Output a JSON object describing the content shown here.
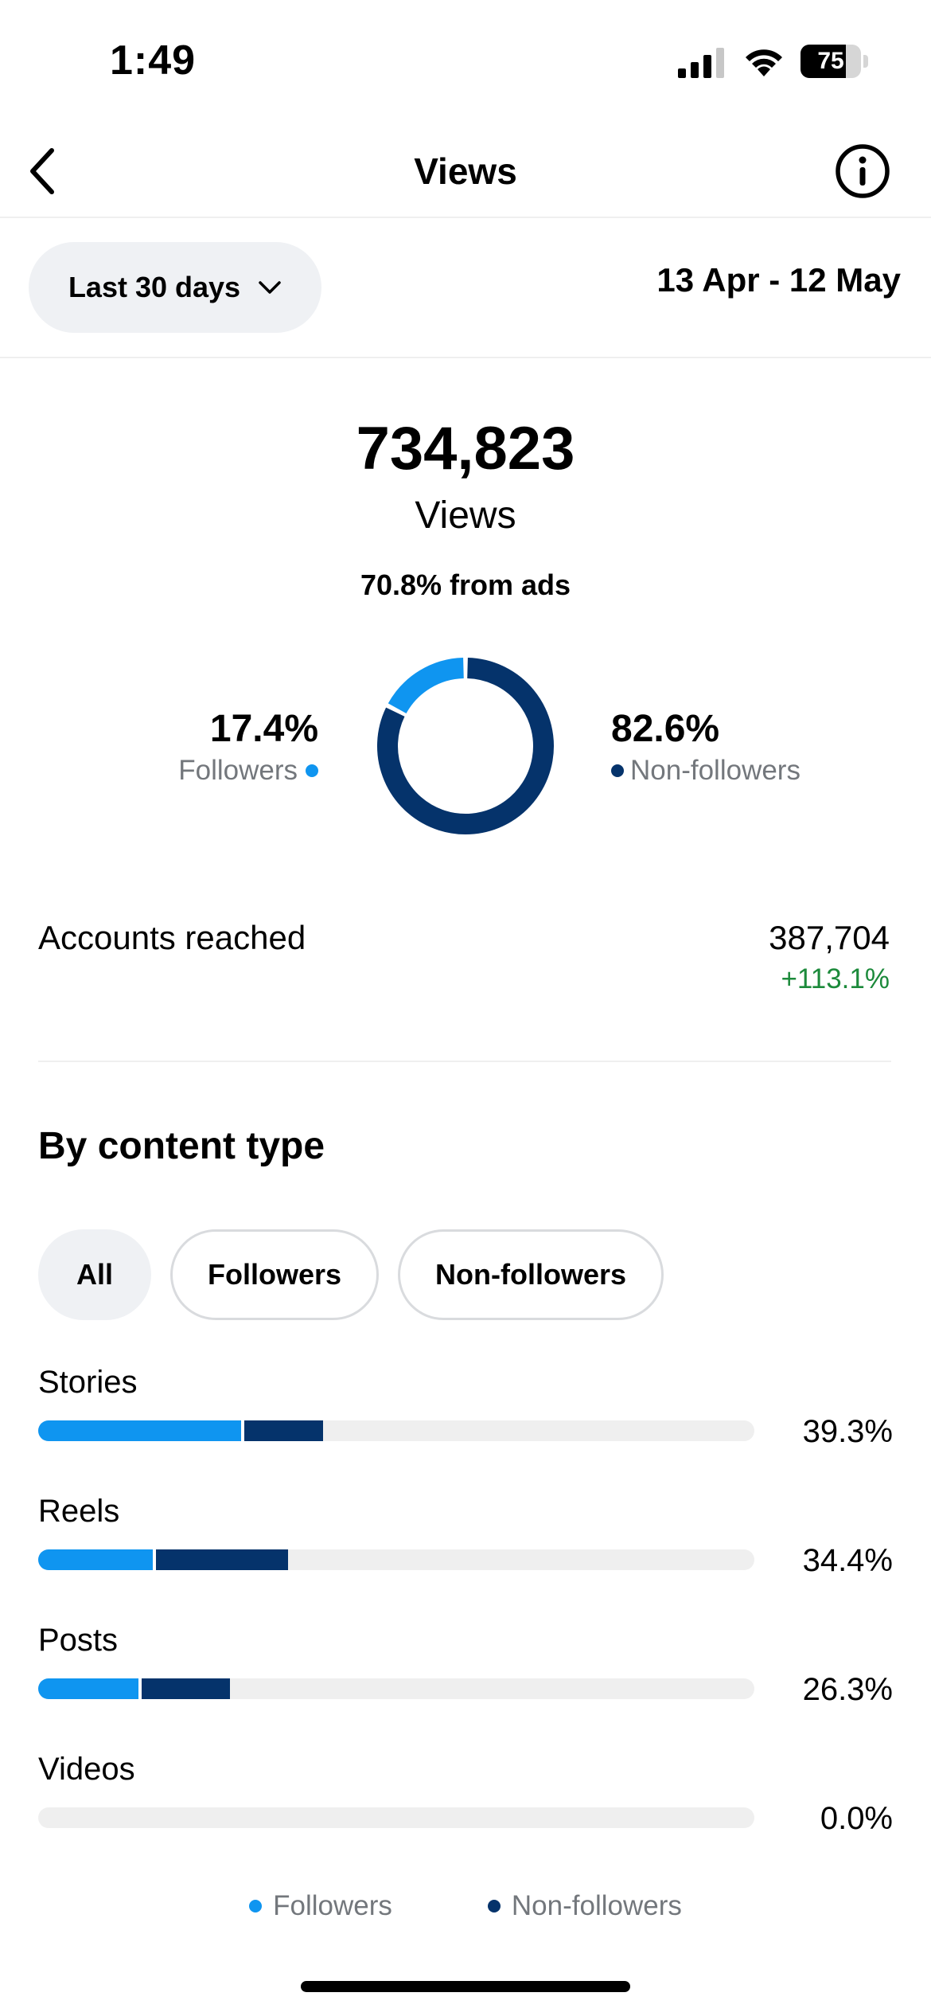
{
  "status_bar": {
    "time": "1:49",
    "battery_level": "75",
    "battery_fraction": 0.75,
    "icons": [
      "signal-icon",
      "wifi-icon",
      "battery-icon"
    ]
  },
  "nav": {
    "title": "Views",
    "back_icon": "chevron-left-icon",
    "info_icon": "info-icon"
  },
  "period": {
    "selected": "Last 30 days",
    "dropdown_icon": "chevron-down-icon",
    "date_range": "13 Apr - 12 May"
  },
  "summary": {
    "total": "734,823",
    "label": "Views",
    "ads_text": "70.8% from ads"
  },
  "audience": {
    "followers_pct": "17.4%",
    "followers_label": "Followers",
    "followers_value": 17.4,
    "nonfollowers_pct": "82.6%",
    "nonfollowers_label": "Non-followers",
    "nonfollowers_value": 82.6
  },
  "reach": {
    "label": "Accounts reached",
    "value": "387,704",
    "change": "+113.1%"
  },
  "content_type": {
    "title": "By content type",
    "filters": [
      "All",
      "Followers",
      "Non-followers"
    ],
    "active_filter": "All",
    "rows": [
      {
        "label": "Stories",
        "pct": "39.3%",
        "followers_frac": 0.283,
        "nonfollowers_frac": 0.11
      },
      {
        "label": "Reels",
        "pct": "34.4%",
        "followers_frac": 0.16,
        "nonfollowers_frac": 0.184
      },
      {
        "label": "Posts",
        "pct": "26.3%",
        "followers_frac": 0.14,
        "nonfollowers_frac": 0.123
      },
      {
        "label": "Videos",
        "pct": "0.0%",
        "followers_frac": 0,
        "nonfollowers_frac": 0
      }
    ]
  },
  "legend": {
    "followers": "Followers",
    "nonfollowers": "Non-followers"
  },
  "colors": {
    "followers": "#0f95f0",
    "nonfollowers": "#05336b",
    "positive": "#1c8a3b",
    "muted": "#73777c",
    "track": "#efefef"
  }
}
